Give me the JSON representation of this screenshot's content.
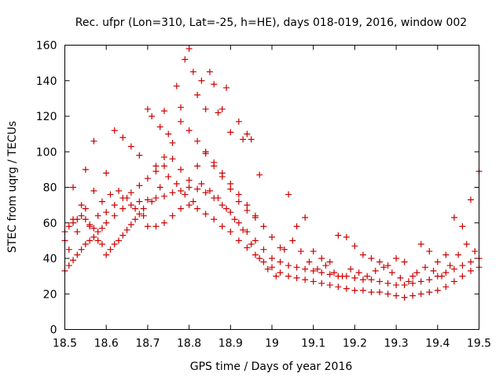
{
  "chart_data": {
    "type": "scatter",
    "title": "Rec. ufpr (Lon=310, Lat=-25, h=HE), days 018-019, 2016, window 002",
    "xlabel": "GPS time / Days of year 2016",
    "ylabel": "STEC from uqrg / TECUs",
    "xlim": [
      18.5,
      19.5
    ],
    "ylim": [
      0,
      160
    ],
    "xticks": [
      "18.5",
      "18.6",
      "18.7",
      "18.8",
      "18.9",
      "19",
      "19.1",
      "19.2",
      "19.3",
      "19.4",
      "19.5"
    ],
    "yticks": [
      "0",
      "20",
      "40",
      "60",
      "80",
      "100",
      "120",
      "140",
      "160"
    ],
    "grid": false,
    "marker": "plus",
    "marker_color": "#cc0000",
    "series": [
      {
        "points": [
          [
            18.5,
            33
          ],
          [
            18.51,
            36
          ],
          [
            18.52,
            39
          ],
          [
            18.53,
            42
          ],
          [
            18.54,
            45
          ],
          [
            18.55,
            48
          ],
          [
            18.56,
            50
          ],
          [
            18.57,
            52
          ],
          [
            18.58,
            50
          ],
          [
            18.59,
            48
          ],
          [
            18.6,
            42
          ],
          [
            18.61,
            45
          ],
          [
            18.62,
            48
          ],
          [
            18.63,
            50
          ],
          [
            18.64,
            53
          ],
          [
            18.65,
            56
          ],
          [
            18.66,
            59
          ],
          [
            18.67,
            62
          ],
          [
            18.68,
            65
          ],
          [
            18.69,
            68
          ],
          [
            18.7,
            58
          ],
          [
            18.72,
            58
          ],
          [
            18.74,
            60
          ],
          [
            18.76,
            64
          ],
          [
            18.78,
            68
          ],
          [
            18.8,
            70
          ],
          [
            18.82,
            68
          ],
          [
            18.84,
            65
          ],
          [
            18.86,
            62
          ],
          [
            18.88,
            58
          ],
          [
            18.9,
            55
          ],
          [
            18.92,
            50
          ],
          [
            18.94,
            46
          ],
          [
            18.96,
            42
          ],
          [
            18.98,
            38
          ],
          [
            19.0,
            35
          ],
          [
            19.02,
            32
          ],
          [
            19.04,
            30
          ],
          [
            19.06,
            29
          ],
          [
            19.08,
            28
          ],
          [
            19.1,
            27
          ],
          [
            19.12,
            26
          ],
          [
            19.14,
            25
          ],
          [
            19.16,
            24
          ],
          [
            19.18,
            23
          ],
          [
            19.2,
            22
          ],
          [
            19.22,
            22
          ],
          [
            19.24,
            21
          ],
          [
            19.26,
            21
          ],
          [
            19.28,
            20
          ],
          [
            19.3,
            19
          ],
          [
            19.32,
            18
          ],
          [
            19.34,
            19
          ],
          [
            19.36,
            20
          ],
          [
            19.38,
            21
          ],
          [
            19.4,
            22
          ],
          [
            19.42,
            24
          ],
          [
            19.44,
            27
          ],
          [
            19.46,
            30
          ],
          [
            19.48,
            33
          ],
          [
            19.5,
            35
          ]
        ]
      },
      {
        "points": [
          [
            18.5,
            55
          ],
          [
            18.51,
            58
          ],
          [
            18.52,
            60
          ],
          [
            18.53,
            62
          ],
          [
            18.54,
            64
          ],
          [
            18.55,
            62
          ],
          [
            18.56,
            59
          ],
          [
            18.57,
            57
          ],
          [
            18.58,
            55
          ],
          [
            18.59,
            57
          ],
          [
            18.6,
            60
          ],
          [
            18.62,
            64
          ],
          [
            18.64,
            68
          ],
          [
            18.66,
            70
          ],
          [
            18.68,
            72
          ],
          [
            18.7,
            73
          ],
          [
            18.72,
            74
          ],
          [
            18.74,
            75
          ],
          [
            18.76,
            77
          ],
          [
            18.78,
            78
          ],
          [
            18.8,
            80
          ],
          [
            18.82,
            79
          ],
          [
            18.84,
            77
          ],
          [
            18.86,
            74
          ],
          [
            18.88,
            70
          ],
          [
            18.9,
            66
          ],
          [
            18.92,
            60
          ],
          [
            18.94,
            55
          ],
          [
            18.96,
            50
          ],
          [
            18.98,
            45
          ],
          [
            19.0,
            40
          ],
          [
            19.02,
            38
          ],
          [
            19.04,
            36
          ],
          [
            19.06,
            35
          ],
          [
            19.08,
            34
          ],
          [
            19.1,
            33
          ],
          [
            19.12,
            32
          ],
          [
            19.14,
            31
          ],
          [
            19.16,
            30
          ],
          [
            19.18,
            30
          ],
          [
            19.2,
            29
          ],
          [
            19.22,
            28
          ],
          [
            19.24,
            28
          ],
          [
            19.26,
            27
          ],
          [
            19.28,
            26
          ],
          [
            19.3,
            25
          ],
          [
            19.32,
            25
          ],
          [
            19.34,
            26
          ],
          [
            19.36,
            27
          ],
          [
            19.38,
            28
          ],
          [
            19.4,
            30
          ],
          [
            19.42,
            32
          ],
          [
            19.44,
            34
          ],
          [
            19.46,
            36
          ],
          [
            19.48,
            38
          ],
          [
            19.5,
            40
          ]
        ]
      },
      {
        "points": [
          [
            18.52,
            80
          ],
          [
            18.55,
            90
          ],
          [
            18.57,
            106
          ],
          [
            18.6,
            88
          ],
          [
            18.62,
            112
          ],
          [
            18.64,
            108
          ],
          [
            18.66,
            103
          ],
          [
            18.68,
            98
          ],
          [
            18.7,
            124
          ],
          [
            18.71,
            120
          ],
          [
            18.73,
            114
          ],
          [
            18.74,
            123
          ],
          [
            18.75,
            110
          ],
          [
            18.77,
            137
          ],
          [
            18.78,
            125
          ],
          [
            18.79,
            152
          ],
          [
            18.8,
            158
          ],
          [
            18.81,
            145
          ],
          [
            18.82,
            132
          ],
          [
            18.83,
            140
          ],
          [
            18.84,
            124
          ],
          [
            18.85,
            145
          ],
          [
            18.86,
            138
          ],
          [
            18.87,
            122
          ],
          [
            18.88,
            124
          ],
          [
            18.89,
            136
          ],
          [
            18.9,
            111
          ],
          [
            18.92,
            117
          ],
          [
            18.93,
            107
          ],
          [
            18.94,
            110
          ],
          [
            18.95,
            107
          ],
          [
            18.97,
            87
          ],
          [
            18.72,
            92
          ],
          [
            18.74,
            97
          ],
          [
            18.76,
            105
          ],
          [
            18.78,
            117
          ],
          [
            18.8,
            112
          ],
          [
            18.82,
            106
          ],
          [
            18.84,
            99
          ],
          [
            18.86,
            92
          ],
          [
            18.88,
            86
          ],
          [
            18.9,
            79
          ],
          [
            18.92,
            72
          ],
          [
            18.94,
            67
          ],
          [
            18.96,
            63
          ]
        ]
      },
      {
        "points": [
          [
            18.5,
            50
          ],
          [
            18.52,
            62
          ],
          [
            18.54,
            70
          ],
          [
            18.56,
            58
          ],
          [
            18.58,
            64
          ],
          [
            18.6,
            66
          ],
          [
            18.62,
            70
          ],
          [
            18.64,
            74
          ],
          [
            18.66,
            77
          ],
          [
            18.68,
            81
          ],
          [
            18.7,
            85
          ],
          [
            18.72,
            89
          ],
          [
            18.74,
            92
          ],
          [
            18.76,
            96
          ],
          [
            18.78,
            90
          ],
          [
            18.8,
            84
          ],
          [
            18.82,
            92
          ],
          [
            18.84,
            100
          ],
          [
            18.86,
            94
          ],
          [
            18.88,
            88
          ],
          [
            18.9,
            82
          ],
          [
            18.92,
            76
          ],
          [
            18.94,
            70
          ],
          [
            18.96,
            64
          ],
          [
            18.98,
            58
          ],
          [
            19.0,
            52
          ],
          [
            19.02,
            46
          ],
          [
            19.04,
            76
          ],
          [
            19.06,
            58
          ],
          [
            19.08,
            63
          ],
          [
            19.1,
            44
          ],
          [
            19.12,
            40
          ],
          [
            19.14,
            38
          ],
          [
            19.16,
            53
          ],
          [
            19.18,
            52
          ],
          [
            19.2,
            47
          ],
          [
            19.22,
            42
          ],
          [
            19.24,
            40
          ],
          [
            19.26,
            38
          ],
          [
            19.28,
            36
          ],
          [
            19.3,
            40
          ],
          [
            19.32,
            38
          ],
          [
            19.34,
            30
          ],
          [
            19.36,
            48
          ],
          [
            19.38,
            44
          ],
          [
            19.4,
            38
          ],
          [
            19.42,
            42
          ],
          [
            19.44,
            63
          ],
          [
            19.46,
            58
          ],
          [
            19.48,
            73
          ],
          [
            19.5,
            89
          ]
        ]
      },
      {
        "points": [
          [
            18.51,
            45
          ],
          [
            18.53,
            55
          ],
          [
            18.55,
            68
          ],
          [
            18.57,
            78
          ],
          [
            18.59,
            72
          ],
          [
            18.61,
            76
          ],
          [
            18.63,
            78
          ],
          [
            18.65,
            74
          ],
          [
            18.67,
            68
          ],
          [
            18.69,
            64
          ],
          [
            18.71,
            72
          ],
          [
            18.73,
            80
          ],
          [
            18.75,
            86
          ],
          [
            18.77,
            82
          ],
          [
            18.79,
            76
          ],
          [
            18.81,
            72
          ],
          [
            18.83,
            82
          ],
          [
            18.85,
            78
          ],
          [
            18.87,
            74
          ],
          [
            18.89,
            68
          ],
          [
            18.91,
            62
          ],
          [
            18.93,
            56
          ],
          [
            18.95,
            48
          ],
          [
            18.97,
            40
          ],
          [
            18.99,
            34
          ],
          [
            19.01,
            30
          ],
          [
            19.03,
            45
          ],
          [
            19.05,
            50
          ],
          [
            19.07,
            44
          ],
          [
            19.09,
            38
          ],
          [
            19.11,
            34
          ],
          [
            19.13,
            36
          ],
          [
            19.15,
            32
          ],
          [
            19.17,
            30
          ],
          [
            19.19,
            34
          ],
          [
            19.21,
            32
          ],
          [
            19.23,
            30
          ],
          [
            19.25,
            33
          ],
          [
            19.27,
            35
          ],
          [
            19.29,
            32
          ],
          [
            19.31,
            29
          ],
          [
            19.33,
            27
          ],
          [
            19.35,
            32
          ],
          [
            19.37,
            35
          ],
          [
            19.39,
            33
          ],
          [
            19.41,
            30
          ],
          [
            19.43,
            36
          ],
          [
            19.45,
            42
          ],
          [
            19.47,
            48
          ],
          [
            19.49,
            44
          ]
        ]
      }
    ]
  }
}
